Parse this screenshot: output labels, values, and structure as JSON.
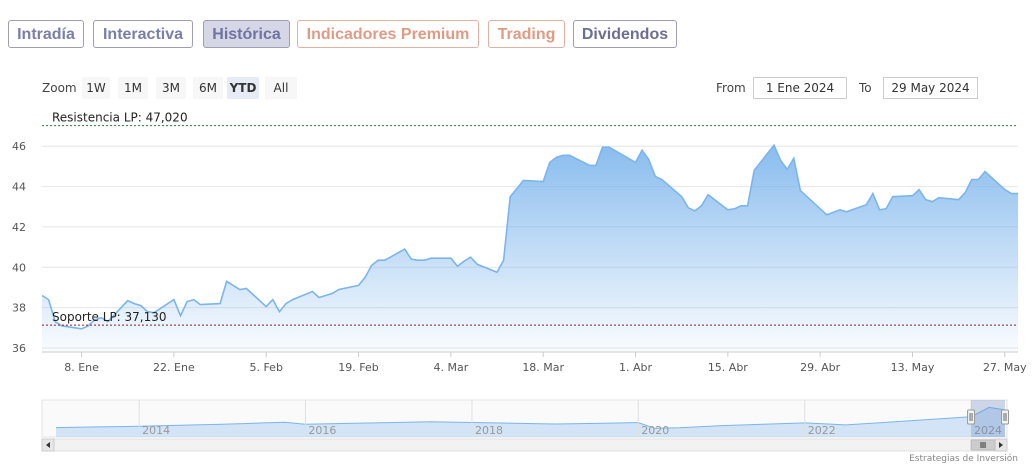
{
  "tabs": [
    {
      "label": "Intradía",
      "style": "normal"
    },
    {
      "label": "Interactiva",
      "style": "normal"
    },
    {
      "label": "Histórica",
      "style": "active"
    },
    {
      "label": "Indicadores Premium",
      "style": "orange"
    },
    {
      "label": "Trading",
      "style": "orange"
    },
    {
      "label": "Dividendos",
      "style": "dark"
    }
  ],
  "range_selector": {
    "zoom_label": "Zoom",
    "buttons": [
      "1W",
      "1M",
      "3M",
      "6M",
      "YTD",
      "All"
    ],
    "selected": "YTD",
    "from_label": "From",
    "from_value": "1 Ene 2024",
    "to_label": "To",
    "to_value": "29 May 2024"
  },
  "credit": "Estrategias de Inversión",
  "colors": {
    "line": "#7cb5ec",
    "resistance": "#2e7d32",
    "support": "#8e1b2e",
    "tab_text": "#7b7fa8",
    "tab_orange": "#e09b85"
  },
  "chart_data": {
    "type": "area",
    "x_start": "2024-01-02",
    "x_end": "2024-05-29",
    "xticks": [
      {
        "date": "2024-01-08",
        "label": "8. Ene"
      },
      {
        "date": "2024-01-22",
        "label": "22. Ene"
      },
      {
        "date": "2024-02-05",
        "label": "5. Feb"
      },
      {
        "date": "2024-02-19",
        "label": "19. Feb"
      },
      {
        "date": "2024-03-04",
        "label": "4. Mar"
      },
      {
        "date": "2024-03-18",
        "label": "18. Mar"
      },
      {
        "date": "2024-04-01",
        "label": "1. Abr"
      },
      {
        "date": "2024-04-15",
        "label": "15. Abr"
      },
      {
        "date": "2024-04-29",
        "label": "29. Abr"
      },
      {
        "date": "2024-05-13",
        "label": "13. May"
      },
      {
        "date": "2024-05-27",
        "label": "27. May"
      }
    ],
    "yticks": [
      36,
      38,
      40,
      42,
      44,
      46
    ],
    "ylim": [
      35.8,
      47.4
    ],
    "grid": true,
    "series": [
      {
        "values": [
          [
            "2024-01-02",
            38.6
          ],
          [
            "2024-01-03",
            38.4
          ],
          [
            "2024-01-04",
            37.3
          ],
          [
            "2024-01-05",
            37.1
          ],
          [
            "2024-01-08",
            36.95
          ],
          [
            "2024-01-09",
            37.1
          ],
          [
            "2024-01-10",
            37.4
          ],
          [
            "2024-01-11",
            37.5
          ],
          [
            "2024-01-12",
            37.3
          ],
          [
            "2024-01-15",
            38.35
          ],
          [
            "2024-01-16",
            38.2
          ],
          [
            "2024-01-17",
            38.1
          ],
          [
            "2024-01-18",
            37.8
          ],
          [
            "2024-01-19",
            37.75
          ],
          [
            "2024-01-22",
            38.4
          ],
          [
            "2024-01-23",
            37.6
          ],
          [
            "2024-01-24",
            38.3
          ],
          [
            "2024-01-25",
            38.4
          ],
          [
            "2024-01-26",
            38.15
          ],
          [
            "2024-01-29",
            38.2
          ],
          [
            "2024-01-30",
            39.3
          ],
          [
            "2024-01-31",
            39.1
          ],
          [
            "2024-02-01",
            38.9
          ],
          [
            "2024-02-02",
            38.95
          ],
          [
            "2024-02-05",
            38.05
          ],
          [
            "2024-02-06",
            38.4
          ],
          [
            "2024-02-07",
            37.8
          ],
          [
            "2024-02-08",
            38.2
          ],
          [
            "2024-02-09",
            38.4
          ],
          [
            "2024-02-12",
            38.8
          ],
          [
            "2024-02-13",
            38.5
          ],
          [
            "2024-02-14",
            38.6
          ],
          [
            "2024-02-15",
            38.7
          ],
          [
            "2024-02-16",
            38.9
          ],
          [
            "2024-02-19",
            39.1
          ],
          [
            "2024-02-20",
            39.5
          ],
          [
            "2024-02-21",
            40.1
          ],
          [
            "2024-02-22",
            40.35
          ],
          [
            "2024-02-23",
            40.35
          ],
          [
            "2024-02-26",
            40.9
          ],
          [
            "2024-02-27",
            40.4
          ],
          [
            "2024-02-28",
            40.35
          ],
          [
            "2024-02-29",
            40.35
          ],
          [
            "2024-03-01",
            40.45
          ],
          [
            "2024-03-04",
            40.45
          ],
          [
            "2024-03-05",
            40.05
          ],
          [
            "2024-03-06",
            40.3
          ],
          [
            "2024-03-07",
            40.5
          ],
          [
            "2024-03-08",
            40.15
          ],
          [
            "2024-03-11",
            39.75
          ],
          [
            "2024-03-12",
            40.35
          ],
          [
            "2024-03-13",
            43.5
          ],
          [
            "2024-03-14",
            43.9
          ],
          [
            "2024-03-15",
            44.3
          ],
          [
            "2024-03-18",
            44.25
          ],
          [
            "2024-03-19",
            45.2
          ],
          [
            "2024-03-20",
            45.45
          ],
          [
            "2024-03-21",
            45.55
          ],
          [
            "2024-03-22",
            45.55
          ],
          [
            "2024-03-25",
            45.05
          ],
          [
            "2024-03-26",
            45.05
          ],
          [
            "2024-03-27",
            45.95
          ],
          [
            "2024-03-28",
            45.95
          ],
          [
            "2024-04-01",
            45.2
          ],
          [
            "2024-04-02",
            45.8
          ],
          [
            "2024-04-03",
            45.35
          ],
          [
            "2024-04-04",
            44.5
          ],
          [
            "2024-04-05",
            44.35
          ],
          [
            "2024-04-08",
            43.5
          ],
          [
            "2024-04-09",
            42.95
          ],
          [
            "2024-04-10",
            42.8
          ],
          [
            "2024-04-11",
            43.05
          ],
          [
            "2024-04-12",
            43.6
          ],
          [
            "2024-04-15",
            42.85
          ],
          [
            "2024-04-16",
            42.9
          ],
          [
            "2024-04-17",
            43.05
          ],
          [
            "2024-04-18",
            43.05
          ],
          [
            "2024-04-19",
            44.8
          ],
          [
            "2024-04-22",
            46.05
          ],
          [
            "2024-04-23",
            45.3
          ],
          [
            "2024-04-24",
            44.85
          ],
          [
            "2024-04-25",
            45.4
          ],
          [
            "2024-04-26",
            43.8
          ],
          [
            "2024-04-29",
            42.9
          ],
          [
            "2024-04-30",
            42.6
          ],
          [
            "2024-05-02",
            42.85
          ],
          [
            "2024-05-03",
            42.75
          ],
          [
            "2024-05-06",
            43.1
          ],
          [
            "2024-05-07",
            43.65
          ],
          [
            "2024-05-08",
            42.85
          ],
          [
            "2024-05-09",
            42.9
          ],
          [
            "2024-05-10",
            43.5
          ],
          [
            "2024-05-13",
            43.55
          ],
          [
            "2024-05-14",
            43.85
          ],
          [
            "2024-05-15",
            43.35
          ],
          [
            "2024-05-16",
            43.25
          ],
          [
            "2024-05-17",
            43.45
          ],
          [
            "2024-05-20",
            43.35
          ],
          [
            "2024-05-21",
            43.7
          ],
          [
            "2024-05-22",
            44.35
          ],
          [
            "2024-05-23",
            44.35
          ],
          [
            "2024-05-24",
            44.75
          ],
          [
            "2024-05-27",
            43.85
          ],
          [
            "2024-05-28",
            43.65
          ],
          [
            "2024-05-29",
            43.65
          ]
        ]
      }
    ],
    "annotations": [
      {
        "type": "hline",
        "label": "Resistencia LP: 47,020",
        "value": 47.02,
        "color": "#2e7d32"
      },
      {
        "type": "hline",
        "label": "Soporte LP: 37,130",
        "value": 37.13,
        "color": "#8e1b2e"
      }
    ],
    "navigator": {
      "x_labels": [
        "2014",
        "2016",
        "2018",
        "2020",
        "2022",
        "2024"
      ],
      "series": [
        [
          "2013-01-01",
          30.5
        ],
        [
          "2013-07-01",
          31.0
        ],
        [
          "2014-01-01",
          31.5
        ],
        [
          "2014-07-01",
          32.2
        ],
        [
          "2015-01-01",
          33.0
        ],
        [
          "2015-07-01",
          34.0
        ],
        [
          "2015-10-01",
          34.5
        ],
        [
          "2016-01-01",
          33.0
        ],
        [
          "2016-07-01",
          33.6
        ],
        [
          "2017-01-01",
          34.2
        ],
        [
          "2017-07-01",
          34.8
        ],
        [
          "2018-01-01",
          34.3
        ],
        [
          "2018-07-01",
          33.8
        ],
        [
          "2019-01-01",
          33.2
        ],
        [
          "2019-07-01",
          33.6
        ],
        [
          "2020-01-01",
          34.2
        ],
        [
          "2020-03-15",
          30.0
        ],
        [
          "2020-07-01",
          30.4
        ],
        [
          "2021-01-01",
          32.0
        ],
        [
          "2021-07-01",
          33.0
        ],
        [
          "2022-01-01",
          34.0
        ],
        [
          "2022-07-01",
          32.5
        ],
        [
          "2023-01-01",
          34.5
        ],
        [
          "2023-07-01",
          36.5
        ],
        [
          "2024-01-01",
          38.6
        ],
        [
          "2024-03-20",
          45.5
        ],
        [
          "2024-05-29",
          43.65
        ]
      ]
    }
  }
}
